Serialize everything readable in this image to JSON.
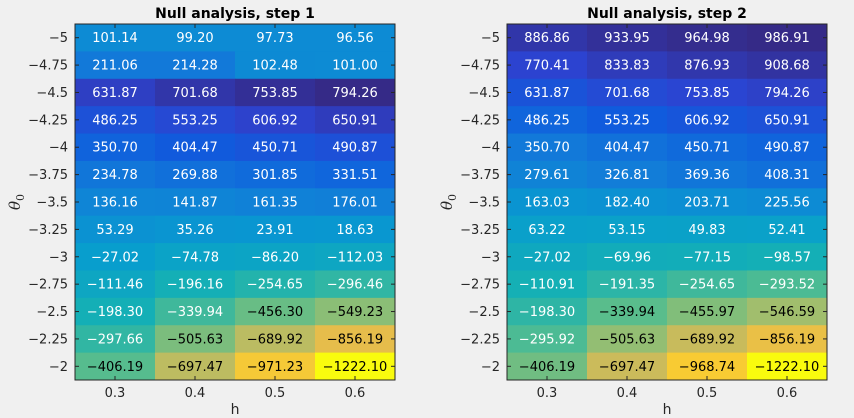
{
  "chart_data": [
    {
      "type": "heatmap",
      "title": "Null analysis, step 1",
      "xlabel": "h",
      "ylabel": "θ",
      "ylabel_subscript": "0",
      "x": [
        "0.3",
        "0.4",
        "0.5",
        "0.6"
      ],
      "y": [
        "-5",
        "-4.75",
        "-4.5",
        "-4.25",
        "-4",
        "-3.75",
        "-3.5",
        "-3.25",
        "-3",
        "-2.75",
        "-2.5",
        "-2.25",
        "-2"
      ],
      "y_display": [
        "−5",
        "−4.75",
        "−4.5",
        "−4.25",
        "−4",
        "−3.75",
        "−3.5",
        "−3.25",
        "−3",
        "−2.75",
        "−2.5",
        "−2.25",
        "−2"
      ],
      "values": [
        [
          101.14,
          99.2,
          97.73,
          96.56
        ],
        [
          211.06,
          214.28,
          102.48,
          101.0
        ],
        [
          631.87,
          701.68,
          753.85,
          794.26
        ],
        [
          486.25,
          553.25,
          606.92,
          650.91
        ],
        [
          350.7,
          404.47,
          450.71,
          490.87
        ],
        [
          234.78,
          269.88,
          301.85,
          331.51
        ],
        [
          136.16,
          141.87,
          161.35,
          176.01
        ],
        [
          53.29,
          35.26,
          23.91,
          18.63
        ],
        [
          -27.02,
          -74.78,
          -86.2,
          -112.03
        ],
        [
          -111.46,
          -196.16,
          -254.65,
          -296.46
        ],
        [
          -198.3,
          -339.94,
          -456.3,
          -549.23
        ],
        [
          -297.66,
          -505.63,
          -689.92,
          -856.19
        ],
        [
          -406.19,
          -697.47,
          -971.23,
          -1222.1
        ]
      ],
      "labels": [
        [
          "101.14",
          "99.20",
          "97.73",
          "96.56"
        ],
        [
          "211.06",
          "214.28",
          "102.48",
          "101.00"
        ],
        [
          "631.87",
          "701.68",
          "753.85",
          "794.26"
        ],
        [
          "486.25",
          "553.25",
          "606.92",
          "650.91"
        ],
        [
          "350.70",
          "404.47",
          "450.71",
          "490.87"
        ],
        [
          "234.78",
          "269.88",
          "301.85",
          "331.51"
        ],
        [
          "136.16",
          "141.87",
          "161.35",
          "176.01"
        ],
        [
          "53.29",
          "35.26",
          "23.91",
          "18.63"
        ],
        [
          "−27.02",
          "−74.78",
          "−86.20",
          "−112.03"
        ],
        [
          "−111.46",
          "−196.16",
          "−254.65",
          "−296.46"
        ],
        [
          "−198.30",
          "−339.94",
          "−456.30",
          "−549.23"
        ],
        [
          "−297.66",
          "−505.63",
          "−689.92",
          "−856.19"
        ],
        [
          "−406.19",
          "−697.47",
          "−971.23",
          "−1222.10"
        ]
      ],
      "colormap": "parula",
      "color_range": [
        -1222.1,
        794.26
      ]
    },
    {
      "type": "heatmap",
      "title": "Null analysis, step 2",
      "xlabel": "h",
      "ylabel": "θ",
      "ylabel_subscript": "0",
      "x": [
        "0.3",
        "0.4",
        "0.5",
        "0.6"
      ],
      "y": [
        "-5",
        "-4.75",
        "-4.5",
        "-4.25",
        "-4",
        "-3.75",
        "-3.5",
        "-3.25",
        "-3",
        "-2.75",
        "-2.5",
        "-2.25",
        "-2"
      ],
      "y_display": [
        "−5",
        "−4.75",
        "−4.5",
        "−4.25",
        "−4",
        "−3.75",
        "−3.5",
        "−3.25",
        "−3",
        "−2.75",
        "−2.5",
        "−2.25",
        "−2"
      ],
      "values": [
        [
          886.86,
          933.95,
          964.98,
          986.91
        ],
        [
          770.41,
          833.83,
          876.93,
          908.68
        ],
        [
          631.87,
          701.68,
          753.85,
          794.26
        ],
        [
          486.25,
          553.25,
          606.92,
          650.91
        ],
        [
          350.7,
          404.47,
          450.71,
          490.87
        ],
        [
          279.61,
          326.81,
          369.36,
          408.31
        ],
        [
          163.03,
          182.4,
          203.71,
          225.56
        ],
        [
          63.22,
          53.15,
          49.83,
          52.41
        ],
        [
          -27.02,
          -69.96,
          -77.15,
          -98.57
        ],
        [
          -110.91,
          -191.35,
          -254.65,
          -293.52
        ],
        [
          -198.3,
          -339.94,
          -455.97,
          -546.59
        ],
        [
          -295.92,
          -505.63,
          -689.92,
          -856.19
        ],
        [
          -406.19,
          -697.47,
          -968.74,
          -1222.1
        ]
      ],
      "labels": [
        [
          "886.86",
          "933.95",
          "964.98",
          "986.91"
        ],
        [
          "770.41",
          "833.83",
          "876.93",
          "908.68"
        ],
        [
          "631.87",
          "701.68",
          "753.85",
          "794.26"
        ],
        [
          "486.25",
          "553.25",
          "606.92",
          "650.91"
        ],
        [
          "350.70",
          "404.47",
          "450.71",
          "490.87"
        ],
        [
          "279.61",
          "326.81",
          "369.36",
          "408.31"
        ],
        [
          "163.03",
          "182.40",
          "203.71",
          "225.56"
        ],
        [
          "63.22",
          "53.15",
          "49.83",
          "52.41"
        ],
        [
          "−27.02",
          "−69.96",
          "−77.15",
          "−98.57"
        ],
        [
          "−110.91",
          "−191.35",
          "−254.65",
          "−293.52"
        ],
        [
          "−198.30",
          "−339.94",
          "−455.97",
          "−546.59"
        ],
        [
          "−295.92",
          "−505.63",
          "−689.92",
          "−856.19"
        ],
        [
          "−406.19",
          "−697.47",
          "−968.74",
          "−1222.10"
        ]
      ],
      "colormap": "parula",
      "color_range": [
        -1222.1,
        986.91
      ]
    }
  ]
}
